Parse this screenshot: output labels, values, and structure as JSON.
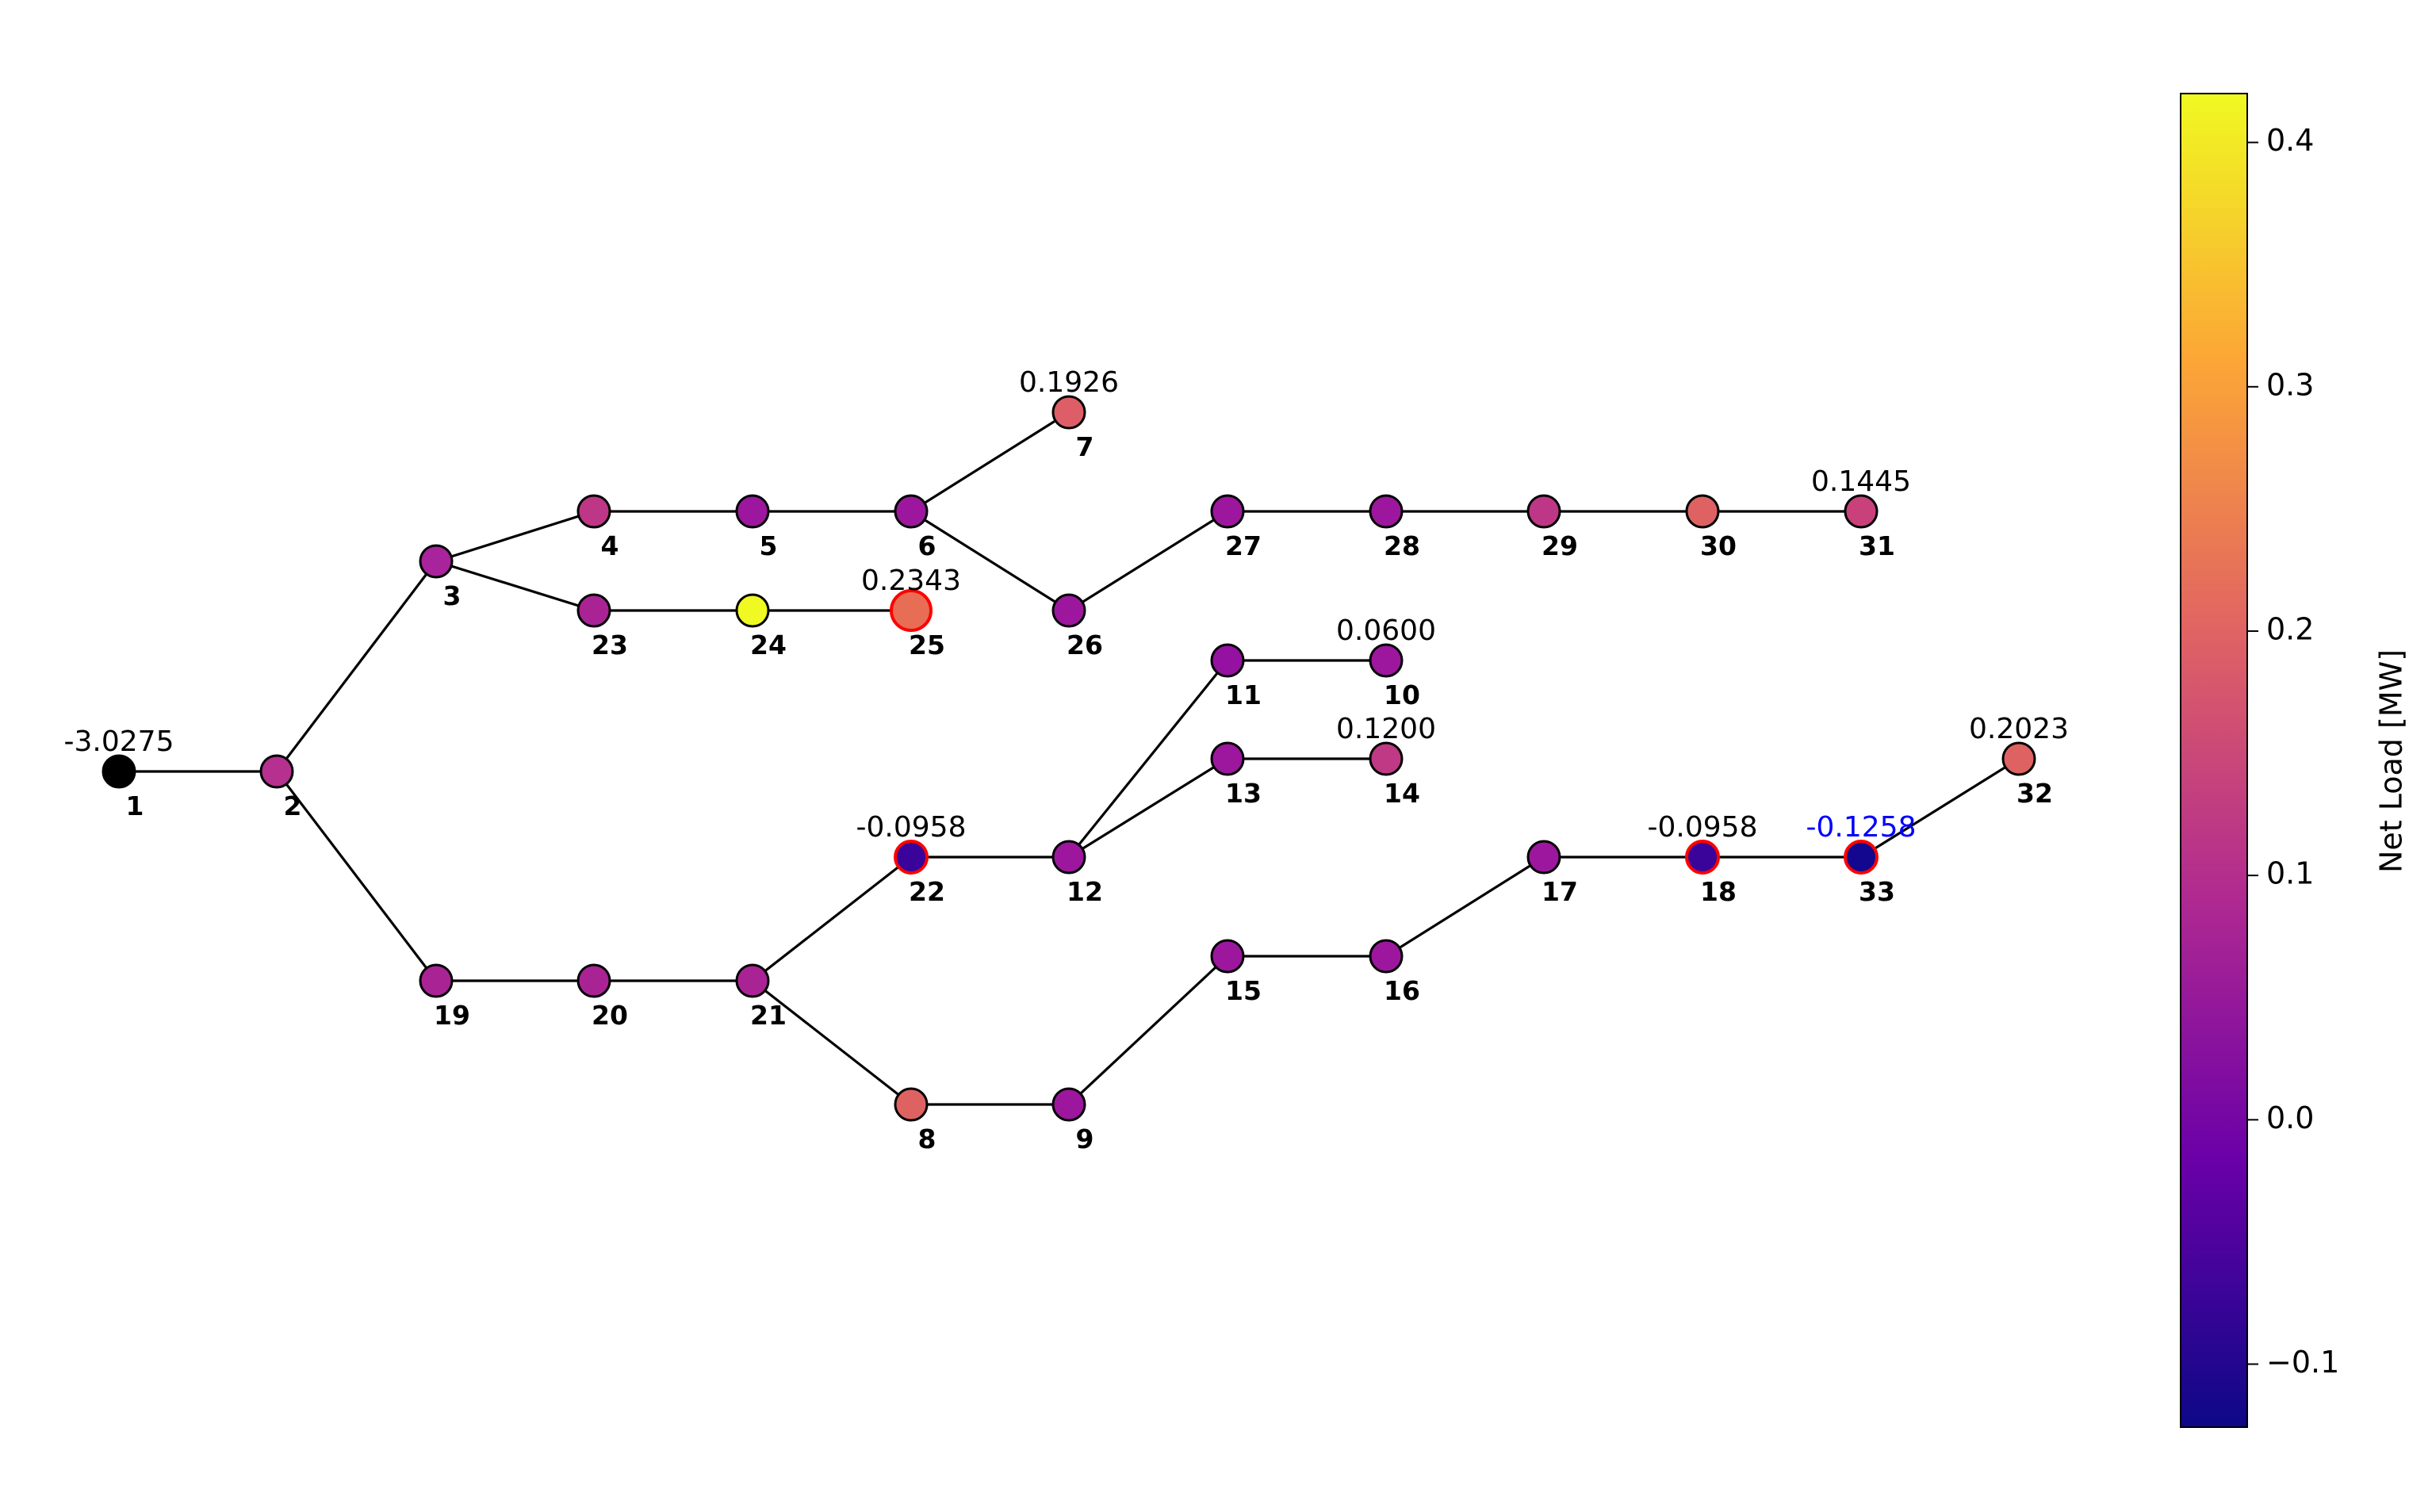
{
  "network": {
    "nodes": [
      {
        "id": "1",
        "load": -3.0275,
        "color": "#000000",
        "annotation": "-3.0275",
        "ring": false
      },
      {
        "id": "2",
        "load": 0.11,
        "color": "#b5308f",
        "annotation": "",
        "ring": false
      },
      {
        "id": "3",
        "load": 0.09,
        "color": "#a8239c",
        "annotation": "",
        "ring": false
      },
      {
        "id": "4",
        "load": 0.12,
        "color": "#bd3786",
        "annotation": "",
        "ring": false
      },
      {
        "id": "5",
        "load": 0.06,
        "color": "#9c179e",
        "annotation": "",
        "ring": false
      },
      {
        "id": "6",
        "load": 0.06,
        "color": "#9c179e",
        "annotation": "",
        "ring": false
      },
      {
        "id": "7",
        "load": 0.1926,
        "color": "#dd5e66",
        "annotation": "0.1926",
        "ring": false
      },
      {
        "id": "8",
        "load": 0.2,
        "color": "#df6263",
        "annotation": "",
        "ring": false
      },
      {
        "id": "9",
        "load": 0.06,
        "color": "#9c179e",
        "annotation": "",
        "ring": false
      },
      {
        "id": "10",
        "load": 0.06,
        "color": "#9c179e",
        "annotation": "0.0600",
        "ring": false
      },
      {
        "id": "11",
        "load": 0.045,
        "color": "#9511a1",
        "annotation": "",
        "ring": false
      },
      {
        "id": "12",
        "load": 0.06,
        "color": "#9c179e",
        "annotation": "",
        "ring": false
      },
      {
        "id": "13",
        "load": 0.06,
        "color": "#9c179e",
        "annotation": "",
        "ring": false
      },
      {
        "id": "14",
        "load": 0.12,
        "color": "#bf3984",
        "annotation": "0.1200",
        "ring": false
      },
      {
        "id": "15",
        "load": 0.06,
        "color": "#9c179e",
        "annotation": "",
        "ring": false
      },
      {
        "id": "16",
        "load": 0.06,
        "color": "#9c179e",
        "annotation": "",
        "ring": false
      },
      {
        "id": "17",
        "load": 0.06,
        "color": "#9c179e",
        "annotation": "",
        "ring": false
      },
      {
        "id": "18",
        "load": -0.0958,
        "color": "#3a049a",
        "annotation": "-0.0958",
        "ring": true
      },
      {
        "id": "19",
        "load": 0.09,
        "color": "#aa2395",
        "annotation": "",
        "ring": false
      },
      {
        "id": "20",
        "load": 0.09,
        "color": "#aa2395",
        "annotation": "",
        "ring": false
      },
      {
        "id": "21",
        "load": 0.09,
        "color": "#aa2395",
        "annotation": "",
        "ring": false
      },
      {
        "id": "22",
        "load": -0.0958,
        "color": "#3a049a",
        "annotation": "-0.0958",
        "ring": true
      },
      {
        "id": "23",
        "load": 0.09,
        "color": "#aa2395",
        "annotation": "",
        "ring": false
      },
      {
        "id": "24",
        "load": 0.42,
        "color": "#f0f921",
        "annotation": "",
        "ring": false
      },
      {
        "id": "25",
        "load": 0.2343,
        "color": "#e76d55",
        "annotation": "0.2343",
        "ring": true
      },
      {
        "id": "26",
        "load": 0.06,
        "color": "#9c179e",
        "annotation": "",
        "ring": false
      },
      {
        "id": "27",
        "load": 0.06,
        "color": "#9c179e",
        "annotation": "",
        "ring": false
      },
      {
        "id": "28",
        "load": 0.06,
        "color": "#9c179e",
        "annotation": "",
        "ring": false
      },
      {
        "id": "29",
        "load": 0.12,
        "color": "#bd3786",
        "annotation": "",
        "ring": false
      },
      {
        "id": "30",
        "load": 0.2,
        "color": "#df6263",
        "annotation": "",
        "ring": false
      },
      {
        "id": "31",
        "load": 0.1445,
        "color": "#c9417b",
        "annotation": "0.1445",
        "ring": false
      },
      {
        "id": "32",
        "load": 0.2023,
        "color": "#df6263",
        "annotation": "0.2023",
        "ring": false
      },
      {
        "id": "33",
        "load": -0.1258,
        "color": "#13078f",
        "annotation": "-0.1258",
        "ring": true,
        "annotation_color": "#0000ff"
      }
    ],
    "edges": [
      [
        "1",
        "2"
      ],
      [
        "2",
        "3"
      ],
      [
        "2",
        "19"
      ],
      [
        "3",
        "4"
      ],
      [
        "3",
        "23"
      ],
      [
        "4",
        "5"
      ],
      [
        "5",
        "6"
      ],
      [
        "6",
        "7"
      ],
      [
        "6",
        "26"
      ],
      [
        "23",
        "24"
      ],
      [
        "24",
        "25"
      ],
      [
        "26",
        "27"
      ],
      [
        "27",
        "28"
      ],
      [
        "28",
        "29"
      ],
      [
        "29",
        "30"
      ],
      [
        "30",
        "31"
      ],
      [
        "19",
        "20"
      ],
      [
        "20",
        "21"
      ],
      [
        "21",
        "22"
      ],
      [
        "21",
        "8"
      ],
      [
        "22",
        "12"
      ],
      [
        "12",
        "11"
      ],
      [
        "12",
        "13"
      ],
      [
        "11",
        "10"
      ],
      [
        "13",
        "14"
      ],
      [
        "8",
        "9"
      ],
      [
        "9",
        "15"
      ],
      [
        "15",
        "16"
      ],
      [
        "16",
        "17"
      ],
      [
        "17",
        "18"
      ],
      [
        "18",
        "33"
      ],
      [
        "33",
        "32"
      ]
    ],
    "ring_color": "#ff0000",
    "default_annotation_color": "#000000"
  },
  "colorbar": {
    "label": "Net Load [MW]",
    "min": -0.1258,
    "max": 0.42,
    "colormap": "plasma",
    "stops": [
      "#0d0887",
      "#6a00a8",
      "#b12a90",
      "#e16462",
      "#fca636",
      "#f0f921"
    ],
    "ticks": [
      {
        "value": 0.4,
        "label": "0.4"
      },
      {
        "value": 0.3,
        "label": "0.3"
      },
      {
        "value": 0.2,
        "label": "0.2"
      },
      {
        "value": 0.1,
        "label": "0.1"
      },
      {
        "value": 0.0,
        "label": "0.0"
      },
      {
        "value": -0.1,
        "label": "−0.1"
      }
    ]
  }
}
